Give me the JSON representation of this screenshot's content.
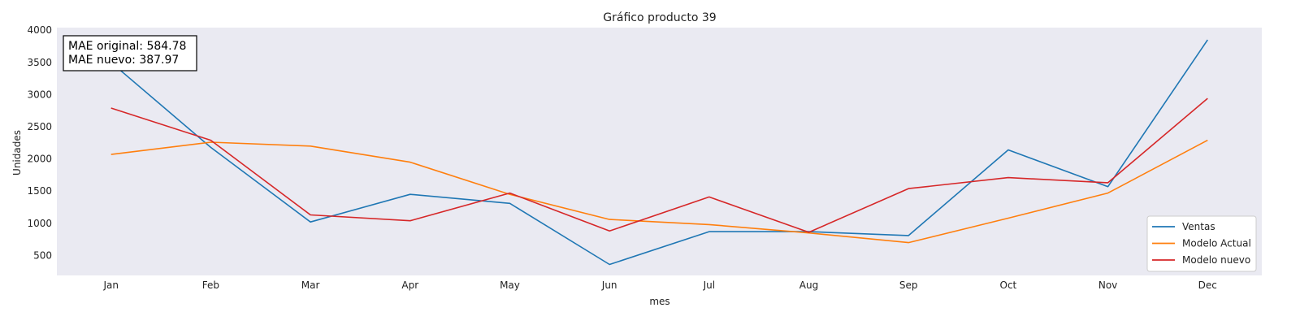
{
  "chart_data": {
    "type": "line",
    "title": "Gráfico producto 39",
    "xlabel": "mes",
    "ylabel": "Unidades",
    "categories": [
      "Jan",
      "Feb",
      "Mar",
      "Apr",
      "May",
      "Jun",
      "Jul",
      "Aug",
      "Sep",
      "Oct",
      "Nov",
      "Dec"
    ],
    "yticks": [
      500,
      1000,
      1500,
      2000,
      2500,
      3000,
      3500,
      4000
    ],
    "ylim": [
      190,
      4040
    ],
    "grid": false,
    "legend_position": "bottom-right",
    "series": [
      {
        "name": "Ventas",
        "color": "#1f77b4",
        "values": [
          3500,
          2180,
          1020,
          1450,
          1310,
          360,
          870,
          870,
          810,
          2140,
          1570,
          3850
        ]
      },
      {
        "name": "Modelo Actual",
        "color": "#ff7f0e",
        "values": [
          2070,
          2260,
          2200,
          1950,
          1450,
          1060,
          980,
          850,
          700,
          1080,
          1470,
          2290
        ]
      },
      {
        "name": "Modelo nuevo",
        "color": "#d62728",
        "values": [
          2790,
          2290,
          1130,
          1040,
          1470,
          880,
          1410,
          860,
          1540,
          1710,
          1630,
          2940
        ]
      }
    ],
    "annotation": {
      "lines": [
        "MAE original: 584.78",
        "MAE nuevo: 387.97"
      ],
      "position": "top-left"
    },
    "plot_background": "#eaeaf2"
  }
}
